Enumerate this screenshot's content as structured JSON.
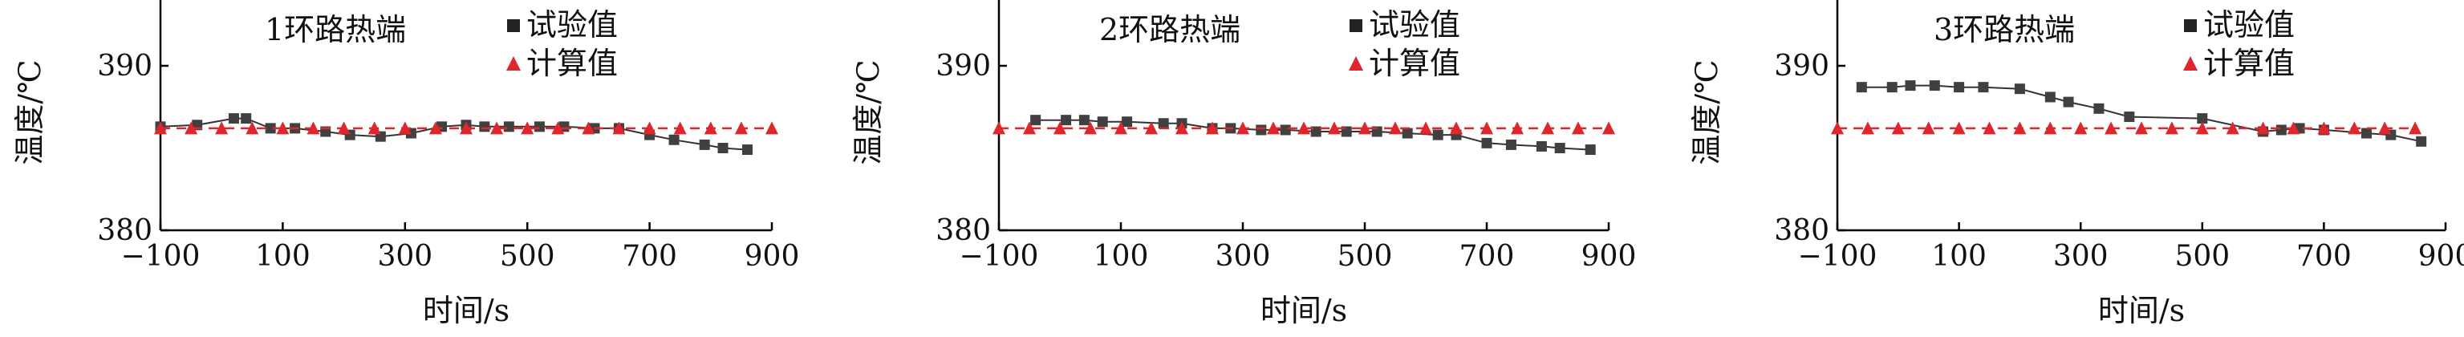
{
  "chart_data": [
    {
      "type": "line",
      "title": "1环路热端",
      "xlabel": "时间/s",
      "ylabel": "温度/℃",
      "xlim": [
        -100,
        900
      ],
      "ylim": [
        380,
        394
      ],
      "x_ticks": [
        -100,
        100,
        300,
        500,
        700,
        900
      ],
      "y_ticks": [
        380,
        390
      ],
      "legend": {
        "position": "top-right",
        "entries": [
          "试验值",
          "计算值"
        ]
      },
      "series": [
        {
          "name": "试验值",
          "marker": "square",
          "color": "#333333",
          "line": "solid",
          "x": [
            -100,
            -40,
            20,
            40,
            80,
            120,
            170,
            210,
            260,
            310,
            360,
            400,
            430,
            470,
            520,
            560,
            610,
            650,
            700,
            740,
            790,
            820,
            860
          ],
          "y": [
            386.3,
            386.4,
            386.8,
            386.8,
            386.2,
            386.2,
            386.0,
            385.8,
            385.7,
            385.9,
            386.3,
            386.4,
            386.3,
            386.3,
            386.3,
            386.3,
            386.2,
            386.2,
            385.8,
            385.5,
            385.2,
            385.0,
            384.9
          ]
        },
        {
          "name": "计算值",
          "marker": "triangle",
          "color": "#e0262d",
          "line": "dashed",
          "x": [
            -100,
            -50,
            0,
            50,
            100,
            150,
            200,
            250,
            300,
            350,
            400,
            450,
            500,
            550,
            600,
            650,
            700,
            750,
            800,
            850,
            900
          ],
          "y": [
            386.2,
            386.2,
            386.2,
            386.2,
            386.2,
            386.2,
            386.2,
            386.2,
            386.2,
            386.2,
            386.2,
            386.2,
            386.2,
            386.2,
            386.2,
            386.2,
            386.2,
            386.2,
            386.2,
            386.2,
            386.2
          ]
        }
      ]
    },
    {
      "type": "line",
      "title": "2环路热端",
      "xlabel": "时间/s",
      "ylabel": "温度/℃",
      "xlim": [
        -100,
        900
      ],
      "ylim": [
        380,
        394
      ],
      "x_ticks": [
        -100,
        100,
        300,
        500,
        700,
        900
      ],
      "y_ticks": [
        380,
        390
      ],
      "legend": {
        "position": "top-right",
        "entries": [
          "试验值",
          "计算值"
        ]
      },
      "series": [
        {
          "name": "试验值",
          "marker": "square",
          "color": "#333333",
          "line": "solid",
          "x": [
            -40,
            10,
            40,
            70,
            110,
            170,
            200,
            250,
            280,
            330,
            370,
            420,
            470,
            520,
            570,
            620,
            650,
            700,
            740,
            790,
            820,
            870
          ],
          "y": [
            386.7,
            386.7,
            386.7,
            386.6,
            386.6,
            386.5,
            386.5,
            386.2,
            386.2,
            386.1,
            386.1,
            386.0,
            386.0,
            386.0,
            385.9,
            385.8,
            385.8,
            385.3,
            385.2,
            385.1,
            385.0,
            384.9
          ]
        },
        {
          "name": "计算值",
          "marker": "triangle",
          "color": "#e0262d",
          "line": "dashed",
          "x": [
            -100,
            -50,
            0,
            50,
            100,
            150,
            200,
            250,
            300,
            350,
            400,
            450,
            500,
            550,
            600,
            650,
            700,
            750,
            800,
            850,
            900
          ],
          "y": [
            386.2,
            386.2,
            386.2,
            386.2,
            386.2,
            386.2,
            386.2,
            386.2,
            386.2,
            386.2,
            386.2,
            386.2,
            386.2,
            386.2,
            386.2,
            386.2,
            386.2,
            386.2,
            386.2,
            386.2,
            386.2
          ]
        }
      ]
    },
    {
      "type": "line",
      "title": "3环路热端",
      "xlabel": "时间/s",
      "ylabel": "温度/℃",
      "xlim": [
        -100,
        900
      ],
      "ylim": [
        380,
        394
      ],
      "x_ticks": [
        -100,
        100,
        300,
        500,
        700,
        900
      ],
      "y_ticks": [
        380,
        390
      ],
      "legend": {
        "position": "top-right",
        "entries": [
          "试验值",
          "计算值"
        ]
      },
      "series": [
        {
          "name": "试验值",
          "marker": "square",
          "color": "#333333",
          "line": "solid",
          "x": [
            -60,
            -10,
            20,
            60,
            100,
            140,
            200,
            250,
            280,
            330,
            380,
            500,
            600,
            630,
            660,
            700,
            770,
            810,
            860
          ],
          "y": [
            388.7,
            388.7,
            388.8,
            388.8,
            388.7,
            388.7,
            388.6,
            388.1,
            387.8,
            387.4,
            386.9,
            386.8,
            386.0,
            386.1,
            386.2,
            386.1,
            385.9,
            385.8,
            385.4
          ]
        },
        {
          "name": "计算值",
          "marker": "triangle",
          "color": "#e0262d",
          "line": "dashed",
          "x": [
            -100,
            -50,
            0,
            50,
            100,
            150,
            200,
            250,
            300,
            350,
            400,
            450,
            500,
            550,
            600,
            650,
            700,
            750,
            800,
            850
          ],
          "y": [
            386.2,
            386.2,
            386.2,
            386.2,
            386.2,
            386.2,
            386.2,
            386.2,
            386.2,
            386.2,
            386.2,
            386.2,
            386.2,
            386.2,
            386.2,
            386.2,
            386.2,
            386.2,
            386.2,
            386.2
          ]
        }
      ]
    }
  ]
}
